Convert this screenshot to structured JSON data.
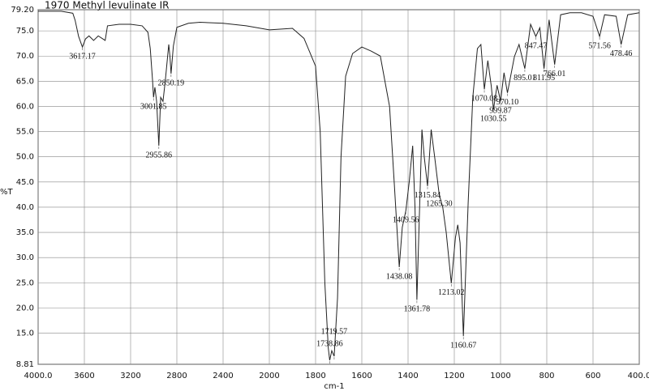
{
  "chart_data": {
    "type": "line",
    "title": "1970   Methyl levulinate IR",
    "x_label": "cm-1",
    "y_label": "%T",
    "xlim": [
      4000,
      400
    ],
    "x_scale_change": 2000,
    "ylim": [
      8.81,
      79.2
    ],
    "color": "#222222",
    "grid": true,
    "xticks": [
      {
        "value": 4000,
        "label": "4000.0"
      },
      3600,
      3200,
      2800,
      2400,
      2000,
      1800,
      1600,
      1400,
      1200,
      1000,
      800,
      600,
      {
        "value": 400,
        "label": "400.0"
      }
    ],
    "yticks": [
      {
        "value": 79.2,
        "label": "79.20"
      },
      {
        "value": 75,
        "label": "75.0"
      },
      {
        "value": 70,
        "label": "70.0"
      },
      {
        "value": 65,
        "label": "65.0"
      },
      {
        "value": 60,
        "label": "60.0"
      },
      {
        "value": 55,
        "label": "55.0"
      },
      {
        "value": 50,
        "label": "50.0"
      },
      {
        "value": 45,
        "label": "45.0"
      },
      {
        "value": 40,
        "label": "40.0"
      },
      {
        "value": 35,
        "label": "35.0"
      },
      {
        "value": 30,
        "label": "30.0"
      },
      {
        "value": 25,
        "label": "25.0"
      },
      {
        "value": 20,
        "label": "20.0"
      },
      {
        "value": 15,
        "label": "15.0"
      },
      8.81
    ],
    "x": [
      4000,
      3800,
      3700,
      3680,
      3650,
      3617.17,
      3590,
      3560,
      3520,
      3480,
      3440,
      3420,
      3400,
      3300,
      3200,
      3100,
      3050,
      3030,
      3010,
      3001.85,
      2990,
      2975,
      2955.86,
      2940,
      2920,
      2900,
      2870,
      2860,
      2850.19,
      2830,
      2800,
      2700,
      2600,
      2400,
      2200,
      2000,
      1900,
      1850,
      1800,
      1780,
      1760,
      1745,
      1738.86,
      1730,
      1719.57,
      1705,
      1690,
      1670,
      1640,
      1600,
      1560,
      1520,
      1480,
      1460,
      1438.08,
      1425,
      1409.56,
      1395,
      1380,
      1370,
      1361.78,
      1350,
      1340,
      1330,
      1315.84,
      1300,
      1285,
      1265.3,
      1250,
      1235,
      1213.02,
      1195,
      1185,
      1175,
      1160.67,
      1140,
      1120,
      1100,
      1085,
      1070.08,
      1055,
      1040,
      1030.55,
      1015,
      999.87,
      985,
      970.1,
      940,
      920,
      895.01,
      870,
      847.47,
      830,
      811.95,
      790,
      766.01,
      740,
      700,
      650,
      600,
      571.56,
      550,
      500,
      478.46,
      450,
      400
    ],
    "values": [
      78.9,
      78.9,
      78.5,
      77.1,
      73.9,
      71.8,
      73.4,
      74.0,
      73.1,
      74.0,
      73.4,
      73.1,
      76.0,
      76.3,
      76.3,
      76.0,
      74.7,
      71.5,
      65.1,
      61.8,
      63.8,
      61.0,
      52.2,
      61.8,
      61.0,
      65.1,
      72.3,
      70.0,
      66.5,
      72.0,
      75.7,
      76.5,
      76.7,
      76.5,
      76.0,
      75.2,
      75.5,
      73.5,
      68.0,
      55.0,
      25.0,
      12.0,
      9.6,
      11.5,
      10.4,
      22.0,
      50.0,
      66.0,
      70.5,
      71.8,
      71.0,
      70.0,
      60.0,
      45.0,
      28.1,
      36.0,
      39.3,
      45.0,
      52.2,
      40.0,
      21.6,
      40.0,
      55.4,
      50.0,
      44.2,
      55.4,
      50.0,
      42.5,
      40.0,
      35.0,
      24.9,
      34.0,
      36.5,
      32.9,
      14.4,
      40.9,
      61.8,
      71.5,
      72.3,
      63.4,
      69.1,
      64.0,
      59.4,
      64.2,
      61.0,
      66.7,
      62.7,
      69.9,
      72.3,
      67.5,
      76.3,
      73.9,
      75.6,
      67.5,
      77.2,
      68.3,
      78.2,
      78.6,
      78.6,
      77.9,
      73.9,
      78.2,
      77.9,
      72.3,
      78.2,
      78.6
    ],
    "annotations": [
      {
        "label": "3617.17",
        "x": 3617.17,
        "y": 71.8
      },
      {
        "label": "3001.85",
        "x": 3001.85,
        "y": 61.8
      },
      {
        "label": "2955.86",
        "x": 2955.86,
        "y": 52.2
      },
      {
        "label": "2850.19",
        "x": 2850.19,
        "y": 66.5
      },
      {
        "label": "1738.86",
        "x": 1738.86,
        "y": 9.6
      },
      {
        "label": "1719.57",
        "x": 1719.57,
        "y": 10.4
      },
      {
        "label": "1438.08",
        "x": 1438.08,
        "y": 28.1
      },
      {
        "label": "1409.56",
        "x": 1409.56,
        "y": 39.3
      },
      {
        "label": "1361.78",
        "x": 1361.78,
        "y": 21.6
      },
      {
        "label": "1315.84",
        "x": 1315.84,
        "y": 44.2
      },
      {
        "label": "1265.30",
        "x": 1265.3,
        "y": 42.5
      },
      {
        "label": "1213.02",
        "x": 1213.02,
        "y": 24.9
      },
      {
        "label": "1160.67",
        "x": 1160.67,
        "y": 14.4
      },
      {
        "label": "1070.08",
        "x": 1070.08,
        "y": 63.4
      },
      {
        "label": "1030.55",
        "x": 1030.55,
        "y": 59.4
      },
      {
        "label": "999.87",
        "x": 999.87,
        "y": 61.0
      },
      {
        "label": "970.10",
        "x": 970.1,
        "y": 62.7
      },
      {
        "label": "895.01",
        "x": 895.01,
        "y": 67.5
      },
      {
        "label": "847.47",
        "x": 847.47,
        "y": 73.9
      },
      {
        "label": "811.95",
        "x": 811.95,
        "y": 67.5
      },
      {
        "label": "766.01",
        "x": 766.01,
        "y": 68.3
      },
      {
        "label": "571.56",
        "x": 571.56,
        "y": 73.9
      },
      {
        "label": "478.46",
        "x": 478.46,
        "y": 72.3
      }
    ]
  }
}
